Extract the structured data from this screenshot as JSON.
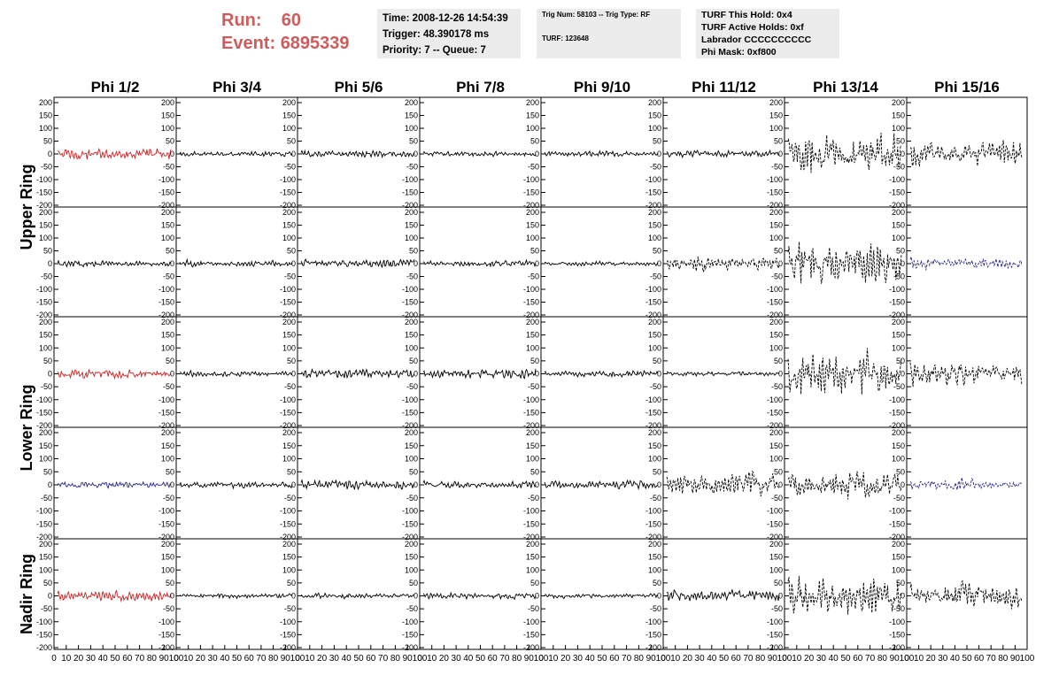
{
  "header": {
    "run_label": "Run:",
    "run_value": "60",
    "event_label": "Event:",
    "event_value": "6895339",
    "info_box_1": [
      "Time: 2008-12-26 14:54:39",
      "Trigger: 48.390178 ms",
      "Priority: 7 -- Queue: 7"
    ],
    "info_box_2": [
      "Trig Num: 58103 -- Trig Type: RF",
      "TURF: 123648"
    ],
    "info_box_3": [
      "TURF This Hold: 0x4",
      "TURF Active Holds: 0xf",
      "Labrador CCCCCCCCCC",
      "Phi Mask: 0xf800"
    ]
  },
  "colors": {
    "red": "#cc2222",
    "blue": "#2a2a8c",
    "black": "#000000"
  },
  "chart_data": {
    "type": "line",
    "columns": [
      "Phi 1/2",
      "Phi 3/4",
      "Phi 5/6",
      "Phi 7/8",
      "Phi 9/10",
      "Phi 11/12",
      "Phi 13/14",
      "Phi 15/16"
    ],
    "ring_labels": [
      {
        "label": "Upper Ring",
        "rows": [
          0,
          1
        ]
      },
      {
        "label": "Lower Ring",
        "rows": [
          2,
          3
        ]
      },
      {
        "label": "Nadir Ring",
        "rows": [
          4
        ]
      }
    ],
    "xlim": [
      0,
      100
    ],
    "ylim": [
      -200,
      200
    ],
    "x_ticks": [
      "0",
      "10",
      "20",
      "30",
      "40",
      "50",
      "60",
      "70",
      "80",
      "90",
      "100"
    ],
    "y_ticks": [
      "200",
      "150",
      "100",
      "50",
      "0",
      "-50",
      "-100",
      "-150",
      "-200"
    ],
    "panels": [
      [
        {
          "amp": 26,
          "color": "red",
          "style": "solid"
        },
        {
          "amp": 11,
          "color": "black",
          "style": "solid"
        },
        {
          "amp": 16,
          "color": "black",
          "style": "solid"
        },
        {
          "amp": 12,
          "color": "black",
          "style": "solid"
        },
        {
          "amp": 13,
          "color": "black",
          "style": "solid"
        },
        {
          "amp": 16,
          "color": "black",
          "style": "solid"
        },
        {
          "amp": 90,
          "color": "black",
          "style": "dashed"
        },
        {
          "amp": 60,
          "color": "black",
          "style": "dashed"
        }
      ],
      [
        {
          "amp": 14,
          "color": "black",
          "style": "solid"
        },
        {
          "amp": 14,
          "color": "black",
          "style": "solid"
        },
        {
          "amp": 18,
          "color": "black",
          "style": "solid"
        },
        {
          "amp": 14,
          "color": "black",
          "style": "solid"
        },
        {
          "amp": 10,
          "color": "black",
          "style": "solid"
        },
        {
          "amp": 30,
          "color": "black",
          "style": "dashed"
        },
        {
          "amp": 100,
          "color": "black",
          "style": "dashed"
        },
        {
          "amp": 25,
          "color": "blue",
          "style": "dashed"
        }
      ],
      [
        {
          "amp": 20,
          "color": "red",
          "style": "solid"
        },
        {
          "amp": 12,
          "color": "black",
          "style": "solid"
        },
        {
          "amp": 22,
          "color": "black",
          "style": "solid"
        },
        {
          "amp": 22,
          "color": "black",
          "style": "solid"
        },
        {
          "amp": 14,
          "color": "black",
          "style": "solid"
        },
        {
          "amp": 10,
          "color": "black",
          "style": "solid"
        },
        {
          "amp": 100,
          "color": "black",
          "style": "dashed"
        },
        {
          "amp": 55,
          "color": "black",
          "style": "dashed"
        }
      ],
      [
        {
          "amp": 14,
          "color": "blue",
          "style": "solid"
        },
        {
          "amp": 14,
          "color": "black",
          "style": "solid"
        },
        {
          "amp": 22,
          "color": "black",
          "style": "solid"
        },
        {
          "amp": 16,
          "color": "black",
          "style": "solid"
        },
        {
          "amp": 18,
          "color": "black",
          "style": "solid"
        },
        {
          "amp": 50,
          "color": "black",
          "style": "dashed"
        },
        {
          "amp": 60,
          "color": "black",
          "style": "dashed"
        },
        {
          "amp": 25,
          "color": "blue",
          "style": "dashed"
        }
      ],
      [
        {
          "amp": 24,
          "color": "red",
          "style": "solid"
        },
        {
          "amp": 10,
          "color": "black",
          "style": "solid"
        },
        {
          "amp": 12,
          "color": "black",
          "style": "solid"
        },
        {
          "amp": 14,
          "color": "black",
          "style": "solid"
        },
        {
          "amp": 10,
          "color": "black",
          "style": "solid"
        },
        {
          "amp": 28,
          "color": "black",
          "style": "solid"
        },
        {
          "amp": 100,
          "color": "black",
          "style": "dashed"
        },
        {
          "amp": 55,
          "color": "black",
          "style": "dashed"
        }
      ]
    ]
  }
}
